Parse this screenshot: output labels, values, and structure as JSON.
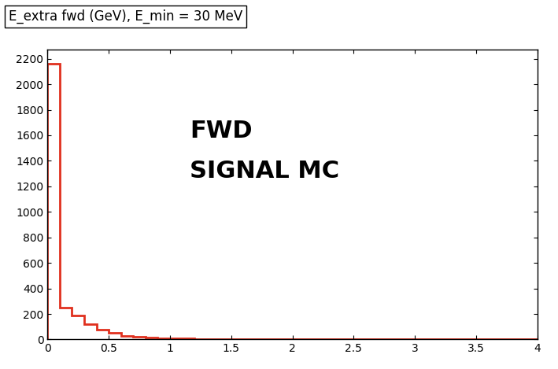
{
  "chart_data": {
    "type": "histogram",
    "title": "E_extra fwd (GeV), E_min = 30 MeV",
    "annotations": [
      "FWD",
      "SIGNAL MC"
    ],
    "bins": [
      0,
      0.1,
      0.2,
      0.3,
      0.4,
      0.5,
      0.6,
      0.7,
      0.8,
      0.9,
      1.0,
      1.1,
      1.2,
      1.3,
      1.4,
      1.5,
      1.6,
      1.7,
      1.8,
      1.9,
      2.0,
      2.1,
      2.2,
      2.3,
      2.4,
      2.5,
      2.6,
      2.7,
      2.8,
      2.9,
      3.0,
      3.1,
      3.2,
      3.3,
      3.4,
      3.5,
      3.6,
      3.7,
      3.8,
      3.9,
      4.0
    ],
    "counts": [
      2160,
      250,
      190,
      120,
      80,
      50,
      30,
      20,
      15,
      12,
      10,
      8,
      6,
      5,
      4,
      3,
      3,
      2,
      2,
      1,
      1,
      1,
      1,
      0,
      0,
      0,
      0,
      0,
      0,
      0,
      0,
      0,
      0,
      0,
      0,
      0,
      0,
      0,
      0,
      0
    ],
    "color": "#e0301e",
    "xlim": [
      0,
      4
    ],
    "xticks": [
      0,
      0.5,
      1,
      1.5,
      2,
      2.5,
      3,
      3.5,
      4
    ],
    "ylim": [
      0,
      2270
    ],
    "yticks": [
      0,
      200,
      400,
      600,
      800,
      1000,
      1200,
      1400,
      1600,
      1800,
      2000,
      2200
    ],
    "grid": false
  }
}
